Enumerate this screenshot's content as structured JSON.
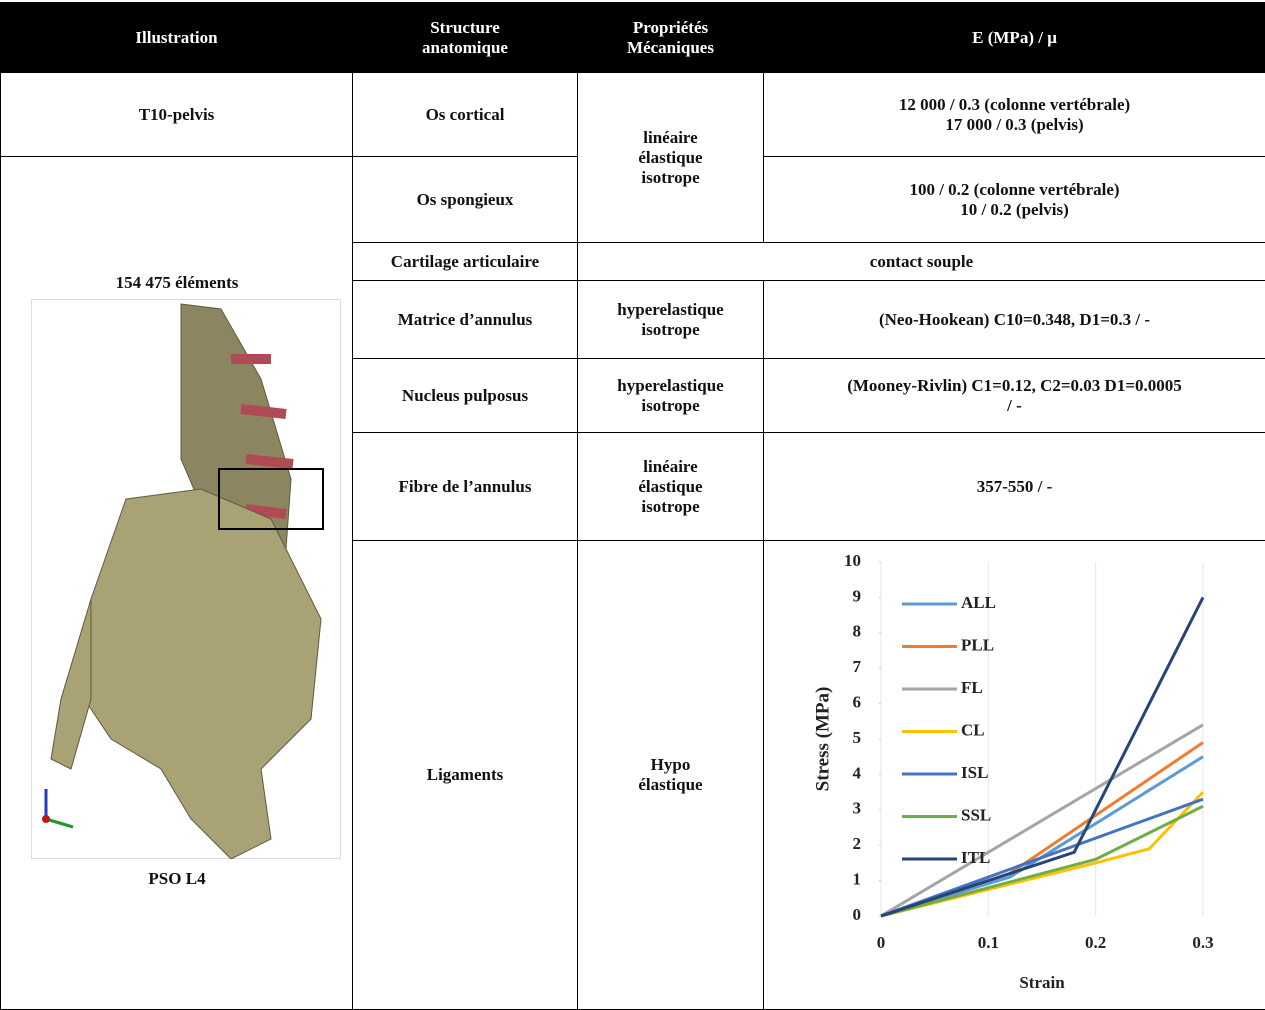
{
  "table": {
    "header": [
      "Illustration",
      [
        "Structure",
        "anatomique"
      ],
      [
        "Propriétés",
        "Mécaniques"
      ],
      "E (MPa) / μ"
    ],
    "illustration": {
      "model": "T10-pelvis",
      "elements": "154 475 éléments",
      "label": "PSO L4"
    },
    "rows": [
      {
        "structure": "Os cortical",
        "property": [
          "linéaire",
          "élastique",
          "isotrope"
        ],
        "modulus": [
          "12 000 / 0.3 (colonne vertébrale)",
          "17 000 / 0.3 (pelvis)"
        ]
      },
      {
        "structure": "Os spongieux",
        "modulus": [
          "100 / 0.2 (colonne vertébrale)",
          "10 / 0.2 (pelvis)"
        ]
      },
      {
        "structure": "Cartilage articulaire",
        "contact": "contact souple"
      },
      {
        "structure": "Matrice d’annulus",
        "property": [
          "hyperelastique",
          "isotrope"
        ],
        "modulus": [
          "(Neo-Hookean) C10=0.348, D1=0.3 / -"
        ]
      },
      {
        "structure": "Nucleus pulposus",
        "property": [
          "hyperelastique",
          "isotrope"
        ],
        "modulus": [
          "(Mooney-Rivlin) C1=0.12, C2=0.03 D1=0.0005",
          "/ -"
        ]
      },
      {
        "structure": "Fibre de l’annulus",
        "property": [
          "linéaire",
          "élastique",
          "isotrope"
        ],
        "modulus": [
          "357-550 / -"
        ]
      },
      {
        "structure": "Ligaments",
        "property": [
          "Hypo",
          "élastique"
        ]
      }
    ]
  },
  "chart_data": {
    "type": "line",
    "xlabel": "Strain",
    "ylabel": "Stress (MPa)",
    "xlim": [
      0,
      0.3
    ],
    "ylim": [
      0,
      10
    ],
    "xticks": [
      0,
      0.1,
      0.2,
      0.3
    ],
    "yticks": [
      0,
      1,
      2,
      3,
      4,
      5,
      6,
      7,
      8,
      9,
      10
    ],
    "grid": "x",
    "legend": "upper left",
    "series": [
      {
        "name": "ALL",
        "color": "#5b9bd5",
        "x": [
          0,
          0.12,
          0.3
        ],
        "values": [
          0,
          1.1,
          4.5
        ]
      },
      {
        "name": "PLL",
        "color": "#ed7d31",
        "x": [
          0,
          0.12,
          0.3
        ],
        "values": [
          0,
          1.2,
          4.9
        ]
      },
      {
        "name": "FL",
        "color": "#a5a5a5",
        "x": [
          0,
          0.3
        ],
        "values": [
          0,
          5.4
        ]
      },
      {
        "name": "CL",
        "color": "#ffc000",
        "x": [
          0,
          0.2,
          0.25,
          0.3
        ],
        "values": [
          0,
          1.5,
          1.9,
          3.5
        ]
      },
      {
        "name": "ISL",
        "color": "#4472c4",
        "x": [
          0,
          0.2,
          0.3
        ],
        "values": [
          0,
          2.2,
          3.3
        ]
      },
      {
        "name": "SSL",
        "color": "#70ad47",
        "x": [
          0,
          0.2,
          0.3
        ],
        "values": [
          0,
          1.6,
          3.1
        ]
      },
      {
        "name": "ITL",
        "color": "#264478",
        "x": [
          0,
          0.18,
          0.3
        ],
        "values": [
          0,
          1.8,
          9
        ]
      }
    ]
  }
}
